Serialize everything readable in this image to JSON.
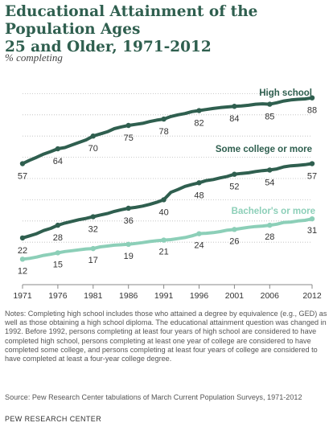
{
  "header": {
    "title_line1": "Educational Attainment of the Population Ages",
    "title_line2": "25 and Older, 1971-2012",
    "subtitle": "% completing"
  },
  "colors": {
    "high_school": "#2f5f4f",
    "some_college": "#2f5f4f",
    "bachelors": "#8ccfb8",
    "grid": "#bbbbbb",
    "axis": "#888888"
  },
  "chart_data": {
    "type": "line",
    "title": "Educational Attainment of the Population Ages 25 and Older, 1971-2012",
    "ylabel": "% completing",
    "xlabel": "",
    "xlim": [
      1971,
      2012
    ],
    "ylim": [
      0,
      100
    ],
    "grid": true,
    "x_ticks": [
      "1971",
      "1976",
      "1981",
      "1986",
      "1991",
      "1996",
      "2001",
      "2006",
      "2012"
    ],
    "series": [
      {
        "name": "High school",
        "color": "#2f5f4f",
        "x": [
          1971,
          1972,
          1973,
          1974,
          1975,
          1976,
          1977,
          1978,
          1979,
          1980,
          1981,
          1982,
          1983,
          1984,
          1985,
          1986,
          1987,
          1988,
          1989,
          1990,
          1991,
          1992,
          1993,
          1994,
          1995,
          1996,
          1997,
          1998,
          1999,
          2000,
          2001,
          2002,
          2003,
          2004,
          2005,
          2006,
          2007,
          2008,
          2009,
          2010,
          2011,
          2012
        ],
        "values": [
          57,
          58.6,
          60,
          61.5,
          62.7,
          64,
          64.6,
          65.8,
          67,
          68.2,
          70,
          71,
          72,
          73.5,
          74.3,
          75,
          75.5,
          76,
          76.8,
          77.5,
          78,
          79.2,
          80,
          80.6,
          81.5,
          82,
          82.5,
          83,
          83.4,
          83.7,
          84,
          84.2,
          84.5,
          85,
          85.2,
          85,
          85.7,
          86.5,
          87,
          87.3,
          87.5,
          88
        ],
        "labels": [
          {
            "x": 1971,
            "text": "57"
          },
          {
            "x": 1976,
            "text": "64"
          },
          {
            "x": 1981,
            "text": "70"
          },
          {
            "x": 1986,
            "text": "75"
          },
          {
            "x": 1991,
            "text": "78"
          },
          {
            "x": 1996,
            "text": "82"
          },
          {
            "x": 2001,
            "text": "84"
          },
          {
            "x": 2006,
            "text": "85"
          },
          {
            "x": 2012,
            "text": "88"
          }
        ]
      },
      {
        "name": "Some college or more",
        "color": "#2f5f4f",
        "x": [
          1971,
          1972,
          1973,
          1974,
          1975,
          1976,
          1977,
          1978,
          1979,
          1980,
          1981,
          1982,
          1983,
          1984,
          1985,
          1986,
          1987,
          1988,
          1989,
          1990,
          1991,
          1992,
          1993,
          1994,
          1995,
          1996,
          1997,
          1998,
          1999,
          2000,
          2001,
          2002,
          2003,
          2004,
          2005,
          2006,
          2007,
          2008,
          2009,
          2010,
          2011,
          2012
        ],
        "values": [
          22,
          23,
          24,
          25.5,
          26.5,
          28,
          29,
          29.8,
          30.6,
          31.2,
          32,
          32.8,
          33.5,
          34.5,
          35.3,
          36,
          36.4,
          37,
          37.8,
          38.8,
          40,
          43.5,
          44.8,
          46.3,
          47.2,
          48,
          49,
          49.5,
          50.3,
          51,
          52,
          52.4,
          52.7,
          53.3,
          53.7,
          54,
          54.5,
          55.5,
          56,
          56.2,
          56.5,
          57
        ],
        "labels": [
          {
            "x": 1971,
            "text": "22"
          },
          {
            "x": 1976,
            "text": "28"
          },
          {
            "x": 1981,
            "text": "32"
          },
          {
            "x": 1986,
            "text": "36"
          },
          {
            "x": 1991,
            "text": "40"
          },
          {
            "x": 1996,
            "text": "48"
          },
          {
            "x": 2001,
            "text": "52"
          },
          {
            "x": 2006,
            "text": "54"
          },
          {
            "x": 2012,
            "text": "57"
          }
        ]
      },
      {
        "name": "Bachelor's or more",
        "color": "#8ccfb8",
        "x": [
          1971,
          1972,
          1973,
          1974,
          1975,
          1976,
          1977,
          1978,
          1979,
          1980,
          1981,
          1982,
          1983,
          1984,
          1985,
          1986,
          1987,
          1988,
          1989,
          1990,
          1991,
          1992,
          1993,
          1994,
          1995,
          1996,
          1997,
          1998,
          1999,
          2000,
          2001,
          2002,
          2003,
          2004,
          2005,
          2006,
          2007,
          2008,
          2009,
          2010,
          2011,
          2012
        ],
        "values": [
          12,
          12.4,
          13,
          13.8,
          14.3,
          15,
          15.6,
          16,
          16.4,
          16.8,
          17,
          17.8,
          18.2,
          18.6,
          18.8,
          19,
          19.4,
          19.8,
          20.3,
          20.7,
          21,
          21.2,
          21.7,
          22.2,
          23,
          24,
          24.2,
          24.5,
          25,
          25.7,
          26,
          26.5,
          27,
          27.4,
          27.6,
          28,
          28.5,
          29.3,
          29.5,
          30,
          30.3,
          31
        ],
        "labels": [
          {
            "x": 1971,
            "text": "12"
          },
          {
            "x": 1976,
            "text": "15"
          },
          {
            "x": 1981,
            "text": "17"
          },
          {
            "x": 1986,
            "text": "19"
          },
          {
            "x": 1991,
            "text": "21"
          },
          {
            "x": 1996,
            "text": "24"
          },
          {
            "x": 2001,
            "text": "26"
          },
          {
            "x": 2006,
            "text": "28"
          },
          {
            "x": 2012,
            "text": "31"
          }
        ]
      }
    ]
  },
  "notes": "Notes: Completing high school includes those who attained a degree by equivalence (e.g., GED) as well as those obtaining a high school diploma. The educational attainment question was changed in 1992. Before 1992, persons completing at least four years of high school are considered to have completed high school, persons completing at least one year of college are considered to have completed some college, and persons completing at least four years of college are considered to have completed at least a four-year college degree.",
  "source": "Source: Pew Research Center tabulations of March Current Population Surveys, 1971-2012",
  "brand": "PEW RESEARCH CENTER"
}
